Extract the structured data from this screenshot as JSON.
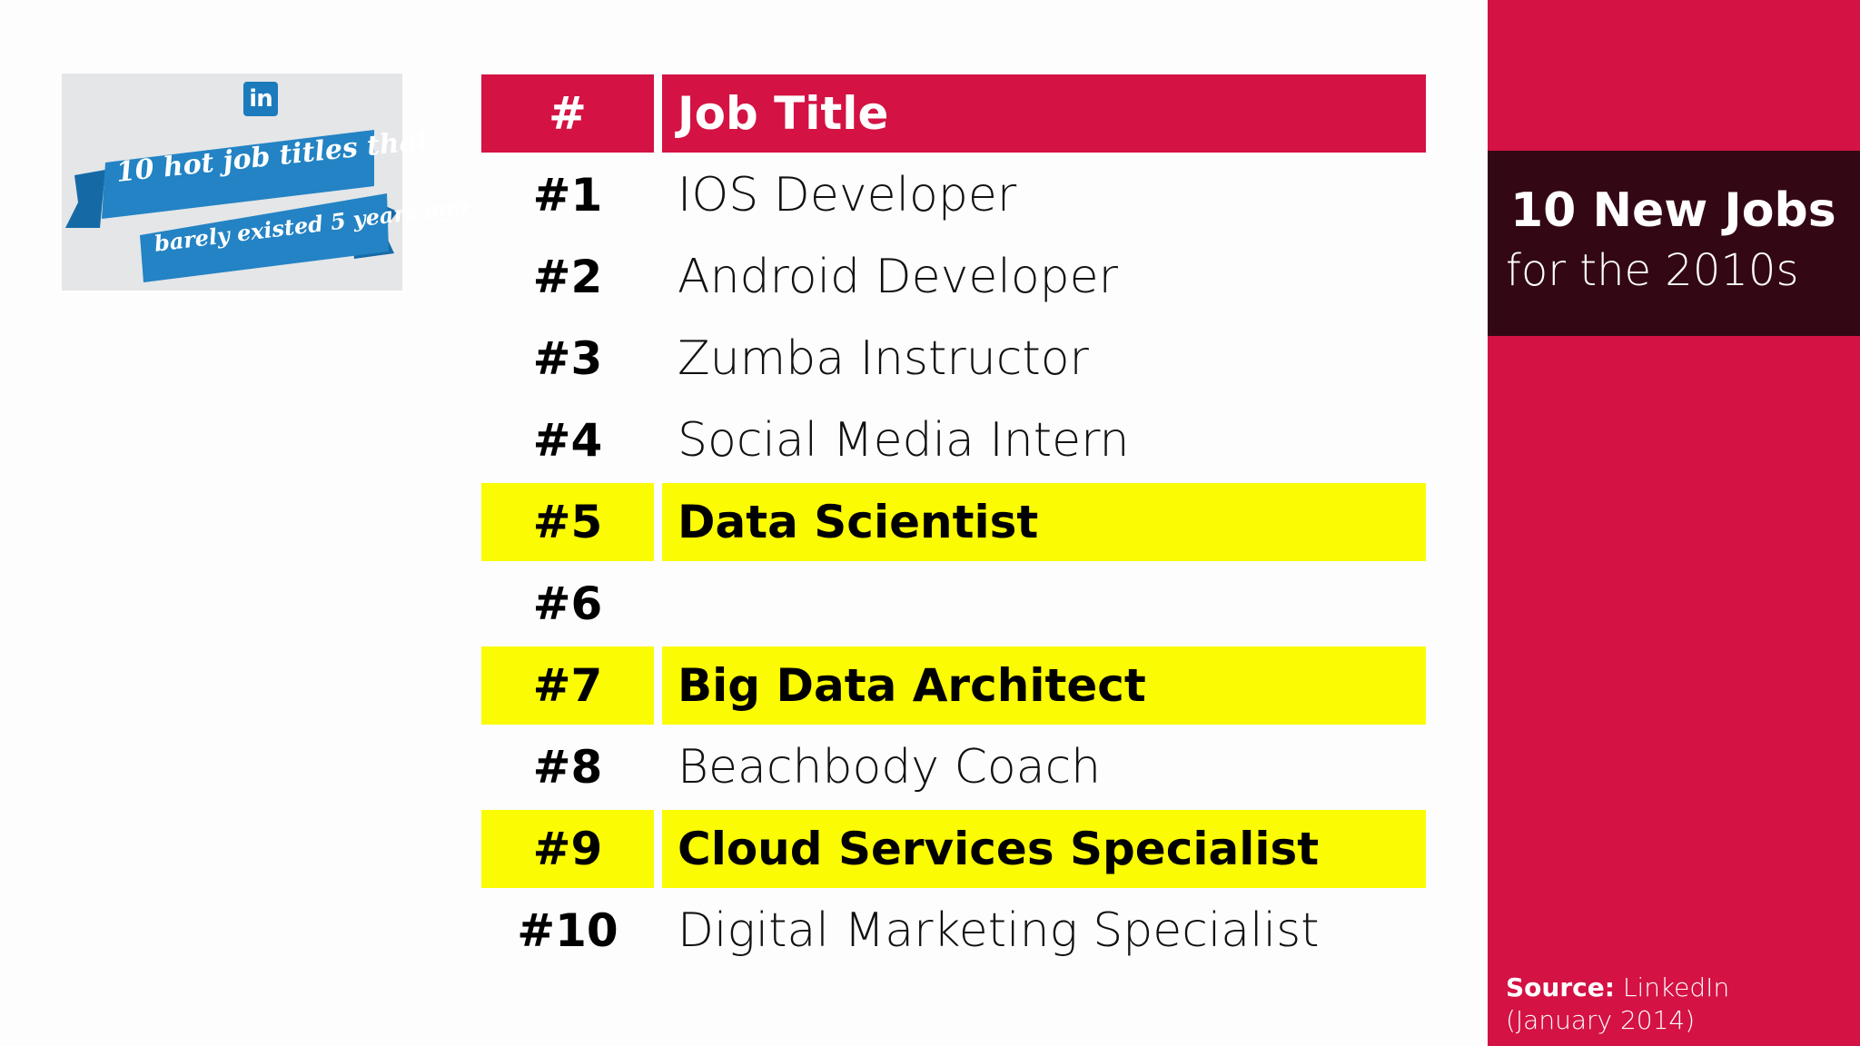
{
  "badge": {
    "logo_text": "in",
    "banner_line1": "10 hot job titles that",
    "banner_line2": "barely existed 5 years ago",
    "logo_color": "#1b7bbd",
    "banner_color": "#1b7bbd"
  },
  "table": {
    "header": {
      "num": "#",
      "title": "Job Title"
    },
    "rows": [
      {
        "num": "#1",
        "title": "IOS Developer",
        "highlight": false
      },
      {
        "num": "#2",
        "title": "Android Developer",
        "highlight": false
      },
      {
        "num": "#3",
        "title": "Zumba Instructor",
        "highlight": false
      },
      {
        "num": "#4",
        "title": "Social Media Intern",
        "highlight": false
      },
      {
        "num": "#5",
        "title": "Data Scientist",
        "highlight": true
      },
      {
        "num": "#6",
        "title": "",
        "highlight": false
      },
      {
        "num": "#7",
        "title": "Big Data Architect",
        "highlight": true
      },
      {
        "num": "#8",
        "title": "Beachbody Coach",
        "highlight": false
      },
      {
        "num": "#9",
        "title": "Cloud Services Specialist",
        "highlight": true
      },
      {
        "num": "#10",
        "title": "Digital Marketing Specialist",
        "highlight": false
      }
    ]
  },
  "panel": {
    "title_line1": "10 New Jobs",
    "title_line2": "for the 2010s",
    "source_label": "Source:",
    "source_value": "LinkedIn",
    "source_date": "(January 2014)"
  },
  "colors": {
    "accent_red": "#d41244",
    "dark_maroon": "#330814",
    "highlight_yellow": "#fbfb04"
  }
}
